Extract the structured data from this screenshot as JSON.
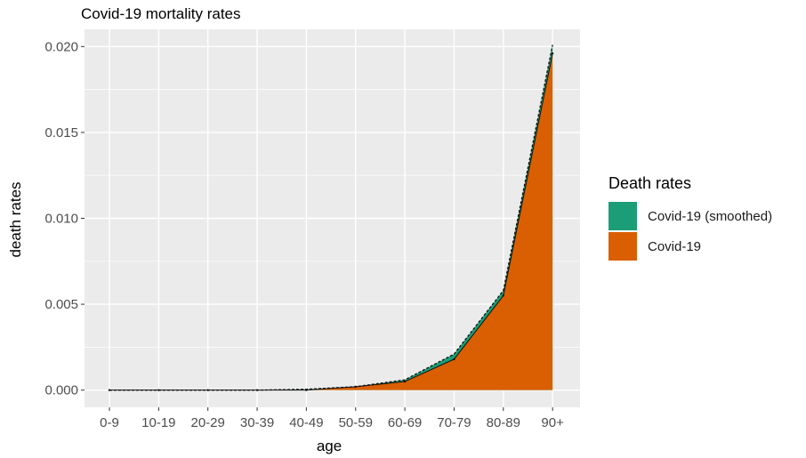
{
  "chart_data": {
    "type": "area",
    "title": "Covid-19 mortality rates",
    "xlabel": "age",
    "ylabel": "death rates",
    "categories": [
      "0-9",
      "10-19",
      "20-29",
      "30-39",
      "40-49",
      "50-59",
      "60-69",
      "70-79",
      "80-89",
      "90+"
    ],
    "ylim": [
      -0.001,
      0.021
    ],
    "yticks": [
      0.0,
      0.005,
      0.01,
      0.015,
      0.02
    ],
    "ytick_labels": [
      "0.000",
      "0.005",
      "0.010",
      "0.015",
      "0.020"
    ],
    "grid": true,
    "legend_position": "right",
    "legend_title": "Death rates",
    "series": [
      {
        "name": "Covid-19 (smoothed)",
        "color": "#1b9e77",
        "values": [
          0.0,
          0.0,
          0.0,
          0.0,
          5e-05,
          0.0002,
          0.0006,
          0.0021,
          0.0058,
          0.0201
        ]
      },
      {
        "name": "Covid-19",
        "color": "#d95f02",
        "values": [
          0.0,
          0.0,
          0.0,
          0.0,
          0.0,
          0.0002,
          0.0005,
          0.0018,
          0.0055,
          0.0196
        ]
      }
    ],
    "panel_background": "#ebebeb",
    "gridline_color": "#ffffff"
  }
}
